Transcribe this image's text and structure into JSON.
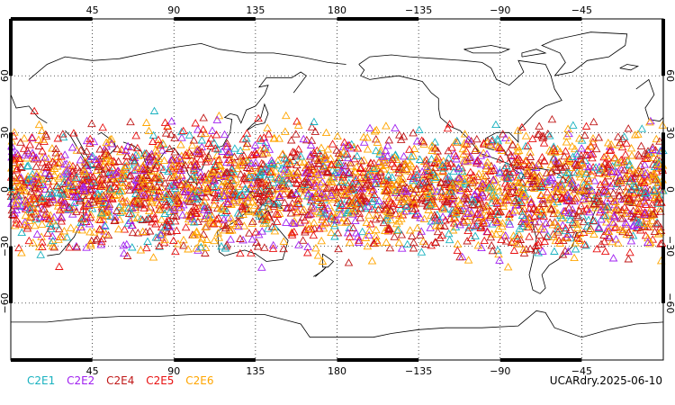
{
  "map": {
    "projection": "cylindrical-equidistant",
    "center_longitude": 180,
    "lon_range": [
      0,
      360
    ],
    "lat_range": [
      -90,
      90
    ],
    "grid": "dotted",
    "marker_shape": "open-triangle",
    "lon_ticks": [
      {
        "lon": 45,
        "label": "45"
      },
      {
        "lon": 90,
        "label": "90"
      },
      {
        "lon": 135,
        "label": "135"
      },
      {
        "lon": 180,
        "label": "180"
      },
      {
        "lon": 225,
        "label": "−135"
      },
      {
        "lon": 270,
        "label": "−90"
      },
      {
        "lon": 315,
        "label": "−45"
      }
    ],
    "lat_ticks": [
      {
        "lat": 60,
        "label": "60"
      },
      {
        "lat": 30,
        "label": "30"
      },
      {
        "lat": 0,
        "label": "0"
      },
      {
        "lat": -30,
        "label": "−30"
      },
      {
        "lat": -60,
        "label": "−60"
      }
    ],
    "coverage_lat_range": [
      -45,
      45
    ]
  },
  "legend": {
    "items": [
      {
        "label": "C2E1",
        "color": "#19b2c0"
      },
      {
        "label": "C2E2",
        "color": "#a020f0"
      },
      {
        "label": "C2E4",
        "color": "#c01818"
      },
      {
        "label": "C2E5",
        "color": "#e81010"
      },
      {
        "label": "C2E6",
        "color": "#ffa500"
      }
    ]
  },
  "stamp": "UCARdry.2025-06-10"
}
